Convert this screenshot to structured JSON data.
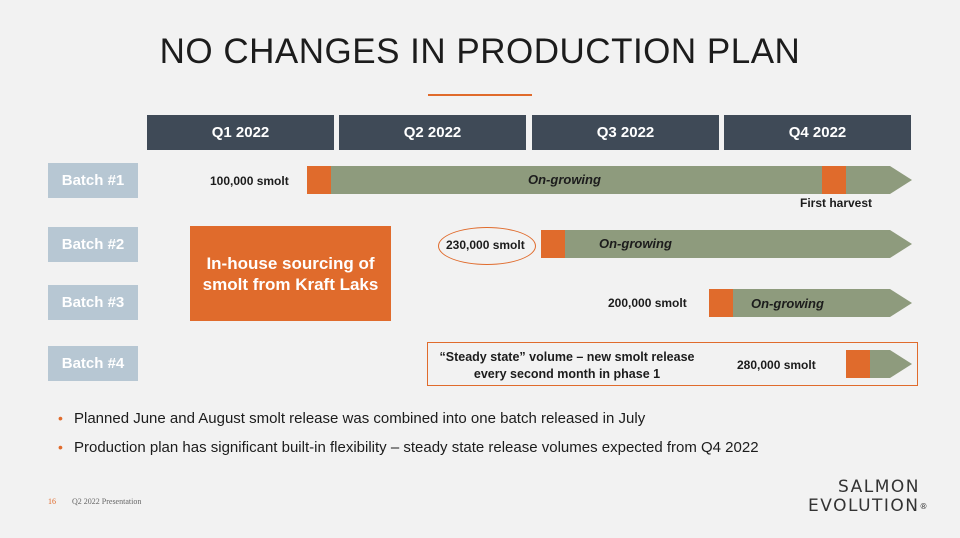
{
  "title": "NO CHANGES IN PRODUCTION PLAN",
  "quarters": [
    "Q1 2022",
    "Q2 2022",
    "Q3 2022",
    "Q4 2022"
  ],
  "batches": [
    "Batch #1",
    "Batch #2",
    "Batch #3",
    "Batch #4"
  ],
  "labels": {
    "b1_smolt": "100,000 smolt",
    "b1_ongrow": "On-growing",
    "b1_harvest": "First harvest",
    "b2_smolt": "230,000 smolt",
    "b2_ongrow": "On-growing",
    "b3_smolt": "200,000 smolt",
    "b3_ongrow": "On-growing",
    "b4_smolt": "280,000 smolt"
  },
  "inhouse": "In-house sourcing of smolt from Kraft Laks",
  "steady_state": "“Steady state” volume – new smolt release every second month in phase 1",
  "bullets": [
    "Planned June and August smolt release was combined into one batch released in July",
    "Production plan has significant built-in flexibility – steady state release volumes expected from Q4 2022"
  ],
  "footer": {
    "page": "16",
    "text": "Q2 2022 Presentation"
  },
  "logo": {
    "line1": "SALMON",
    "line2": "EVOLUTION",
    "mark": "®"
  },
  "colors": {
    "orange": "#e06b2c",
    "green": "#8e9b7d",
    "header": "#3f4a57",
    "batch": "#b7c7d3",
    "background": "#f2f2f2"
  }
}
